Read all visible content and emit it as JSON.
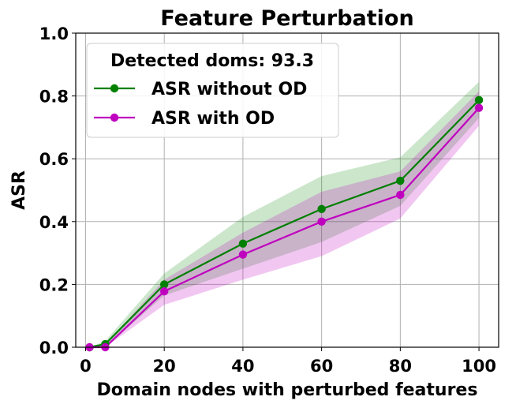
{
  "chart_data": {
    "type": "line",
    "title": "Feature Perturbation",
    "xlabel": "Domain nodes with perturbed features",
    "ylabel": "ASR",
    "xlim": [
      -2.5,
      105
    ],
    "ylim": [
      0,
      1.0
    ],
    "x_ticks": [
      0,
      20,
      40,
      60,
      80,
      100
    ],
    "y_ticks": [
      0.0,
      0.2,
      0.4,
      0.6,
      0.8,
      1.0
    ],
    "x_tick_labels": [
      "0",
      "20",
      "40",
      "60",
      "80",
      "100"
    ],
    "y_tick_labels": [
      "0.0",
      "0.2",
      "0.4",
      "0.6",
      "0.8",
      "1.0"
    ],
    "grid": true,
    "legend_position": "top-left",
    "legend_title": "Detected doms: 93.3",
    "x": [
      1,
      5,
      20,
      40,
      60,
      80,
      100
    ],
    "series": [
      {
        "name": "ASR without OD",
        "color": "#008000",
        "values": [
          0.0,
          0.01,
          0.2,
          0.33,
          0.44,
          0.53,
          0.787
        ],
        "lower": [
          0.0,
          0.0,
          0.165,
          0.25,
          0.335,
          0.45,
          0.73
        ],
        "upper": [
          0.0,
          0.02,
          0.235,
          0.415,
          0.545,
          0.605,
          0.845
        ]
      },
      {
        "name": "ASR with OD",
        "color": "#bf00bf",
        "values": [
          0.0,
          0.0,
          0.178,
          0.295,
          0.4,
          0.485,
          0.762
        ],
        "lower": [
          0.0,
          0.0,
          0.135,
          0.215,
          0.29,
          0.41,
          0.705
        ],
        "upper": [
          0.0,
          0.01,
          0.215,
          0.365,
          0.495,
          0.56,
          0.815
        ]
      }
    ]
  }
}
